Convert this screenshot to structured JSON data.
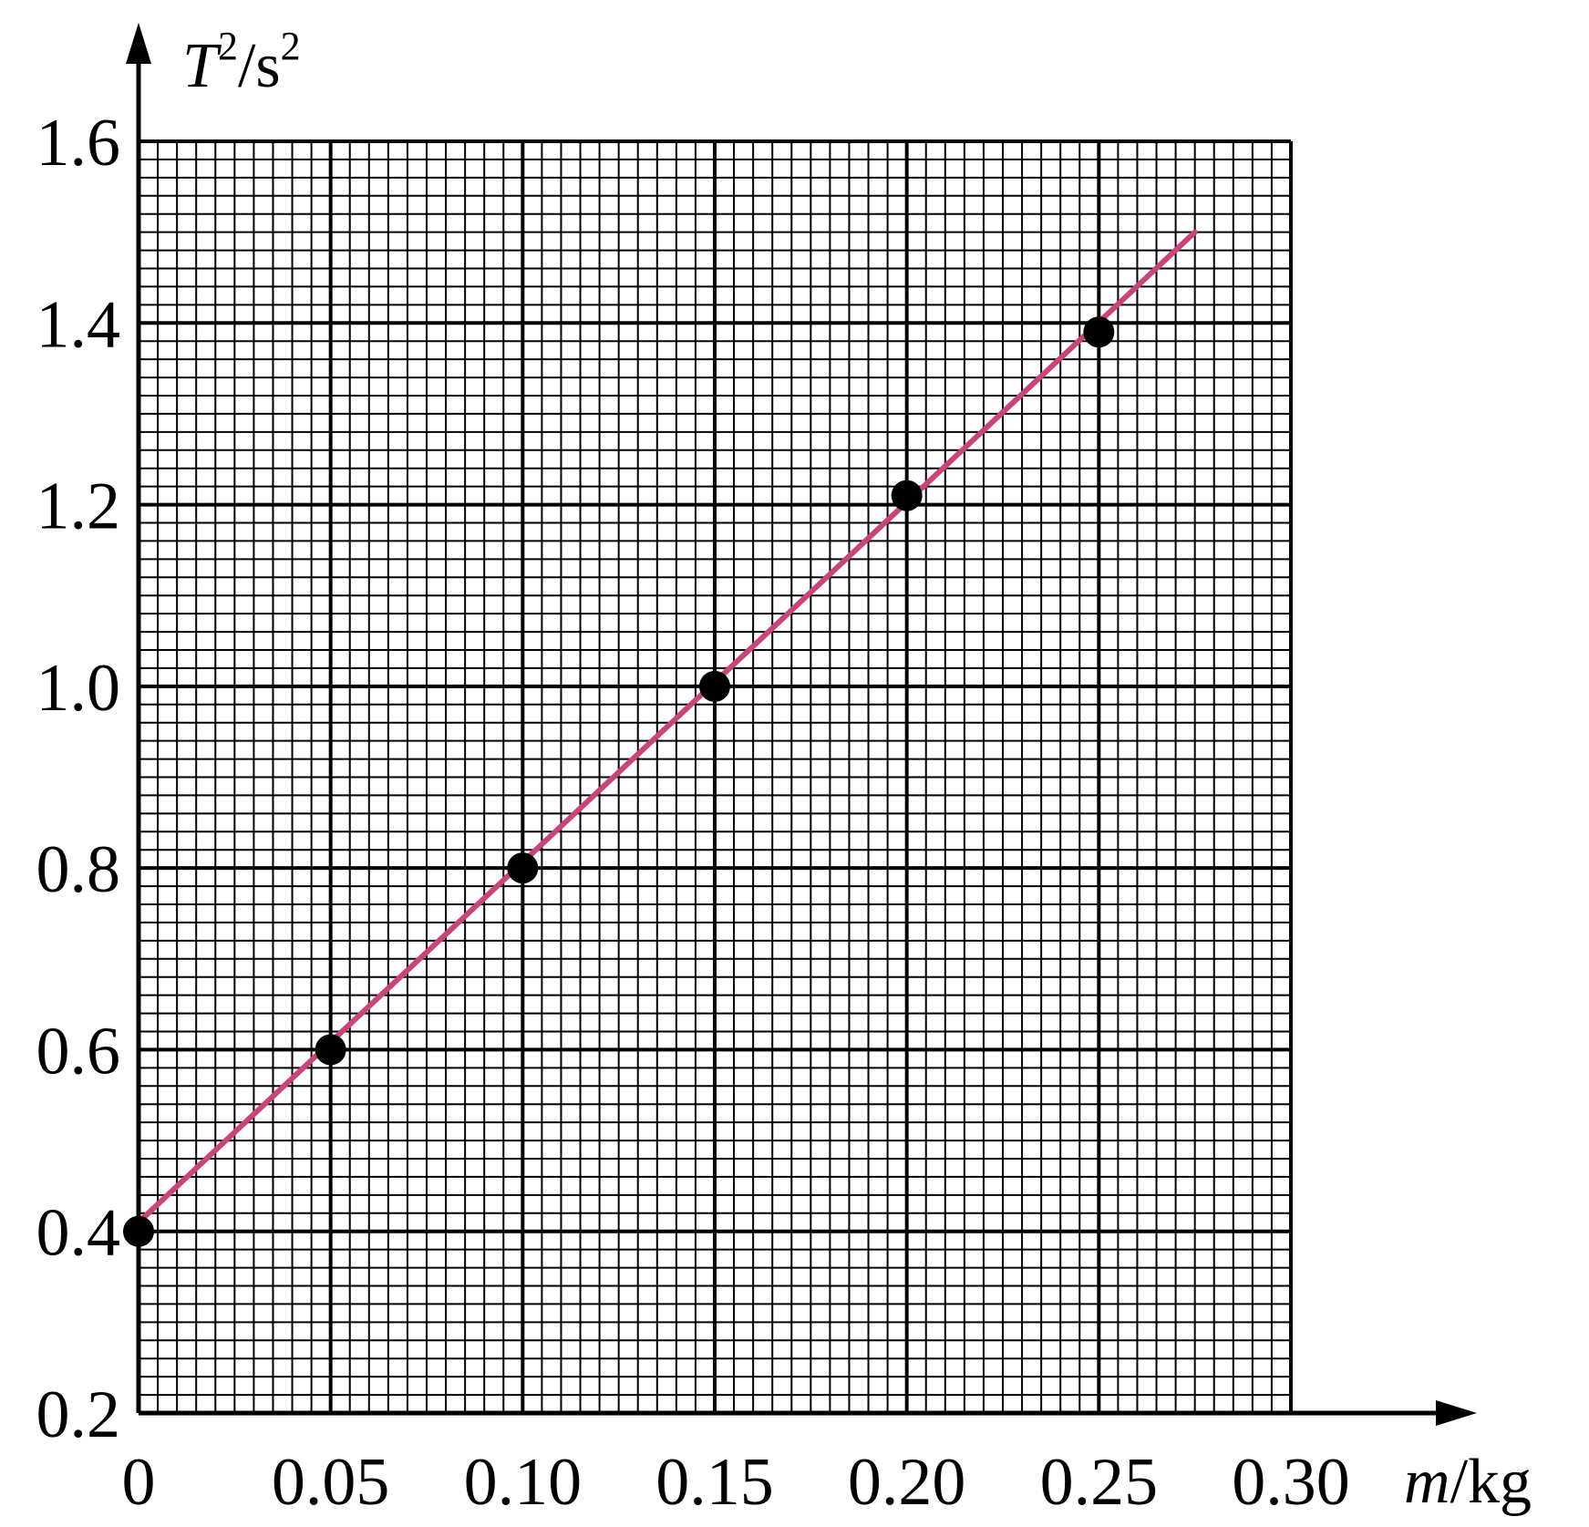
{
  "chart_data": {
    "type": "scatter",
    "ylabel_sym": "T",
    "ylabel_sup": "2",
    "ylabel_unit": "/s",
    "ylabel_unit_sup": "2",
    "xlabel_sym": "m",
    "xlabel_unit": "/kg",
    "xlim": [
      0,
      0.3
    ],
    "ylim": [
      0.2,
      1.6
    ],
    "x_ticks": [
      "0",
      "0.05",
      "0.10",
      "0.15",
      "0.20",
      "0.25",
      "0.30"
    ],
    "x_tick_values": [
      0,
      0.05,
      0.1,
      0.15,
      0.2,
      0.25,
      0.3
    ],
    "y_ticks": [
      "0.2",
      "0.4",
      "0.6",
      "0.8",
      "1.0",
      "1.2",
      "1.4",
      "1.6"
    ],
    "y_tick_values": [
      0.2,
      0.4,
      0.6,
      0.8,
      1.0,
      1.2,
      1.4,
      1.6
    ],
    "grid": true,
    "points": [
      {
        "x": 0.0,
        "y": 0.4
      },
      {
        "x": 0.05,
        "y": 0.6
      },
      {
        "x": 0.1,
        "y": 0.8
      },
      {
        "x": 0.15,
        "y": 1.0
      },
      {
        "x": 0.2,
        "y": 1.21
      },
      {
        "x": 0.25,
        "y": 1.39
      }
    ],
    "fit_line": {
      "x": [
        0.0,
        0.275
      ],
      "y": [
        0.41,
        1.5
      ]
    },
    "colors": {
      "fit_line": "#c8447a",
      "points": "#000000",
      "grid": "#000000"
    }
  }
}
